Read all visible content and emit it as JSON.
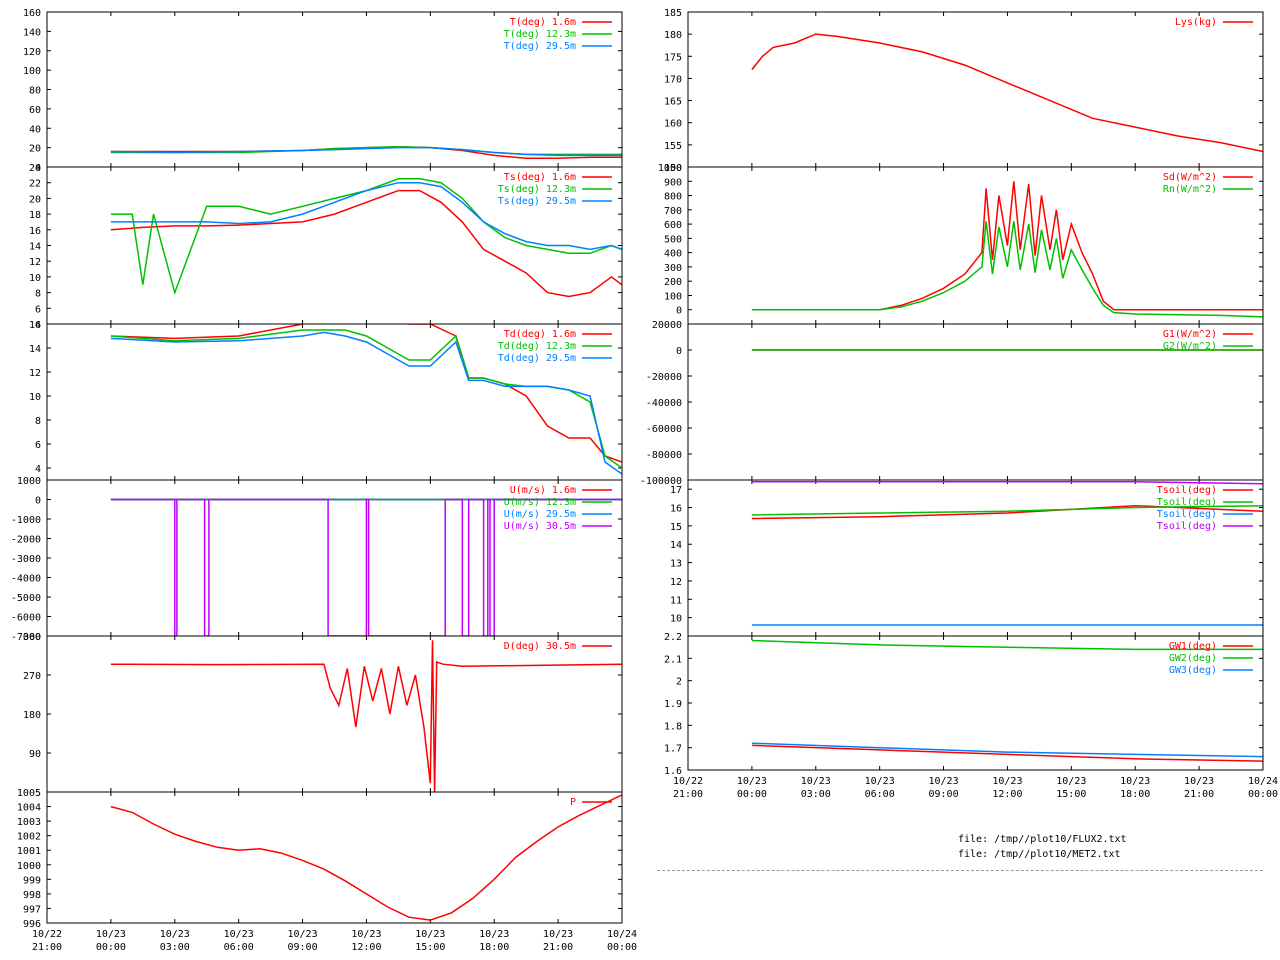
{
  "files": [
    "file: /tmp//plot10/FLUX2.txt",
    "file: /tmp//plot10/MET2.txt"
  ],
  "colors": {
    "red": "#ff0000",
    "green": "#00c000",
    "blue": "#0080ff",
    "purple": "#c000ff"
  },
  "time_axis": {
    "range_hours": [
      -3,
      24
    ],
    "ticks": [
      {
        "date": "10/22",
        "time": "21:00",
        "h": -3
      },
      {
        "date": "10/23",
        "time": "00:00",
        "h": 0
      },
      {
        "date": "10/23",
        "time": "03:00",
        "h": 3
      },
      {
        "date": "10/23",
        "time": "06:00",
        "h": 6
      },
      {
        "date": "10/23",
        "time": "09:00",
        "h": 9
      },
      {
        "date": "10/23",
        "time": "12:00",
        "h": 12
      },
      {
        "date": "10/23",
        "time": "15:00",
        "h": 15
      },
      {
        "date": "10/23",
        "time": "18:00",
        "h": 18
      },
      {
        "date": "10/23",
        "time": "21:00",
        "h": 21
      },
      {
        "date": "10/24",
        "time": "00:00",
        "h": 24
      }
    ]
  },
  "chart_data": [
    {
      "id": "T",
      "type": "line",
      "ylim": [
        0,
        160
      ],
      "yticks": [
        0,
        20,
        40,
        60,
        80,
        100,
        120,
        140,
        160
      ],
      "series": [
        {
          "name": "T(deg)  1.6m",
          "color": "#ff0000",
          "x": [
            0,
            3,
            6,
            9,
            10.5,
            12,
            13.5,
            15,
            16.5,
            18,
            19.5,
            21,
            22.5,
            24
          ],
          "y": [
            16,
            16,
            16,
            17,
            19,
            20,
            21,
            20,
            17,
            12,
            9,
            9,
            10,
            10
          ]
        },
        {
          "name": "T(deg) 12.3m",
          "color": "#00c000",
          "x": [
            0,
            3,
            6,
            9,
            10.5,
            12,
            13.5,
            15,
            16.5,
            18,
            19.5,
            21,
            22.5,
            24
          ],
          "y": [
            15,
            15,
            15,
            17,
            19,
            20,
            21,
            20,
            18,
            15,
            13,
            13,
            13,
            13
          ]
        },
        {
          "name": "T(deg) 29.5m",
          "color": "#0080ff",
          "x": [
            0,
            3,
            6,
            9,
            10.5,
            12,
            13.5,
            15,
            16.5,
            18,
            19.5,
            21,
            22.5,
            24
          ],
          "y": [
            16,
            15,
            16,
            17,
            18,
            19,
            20,
            20,
            18,
            15,
            13,
            12,
            12,
            12
          ]
        }
      ]
    },
    {
      "id": "Ts",
      "type": "line",
      "ylim": [
        4,
        24
      ],
      "yticks": [
        4,
        6,
        8,
        10,
        12,
        14,
        16,
        18,
        20,
        22,
        24
      ],
      "series": [
        {
          "name": "Ts(deg)  1.6m",
          "color": "#ff0000",
          "x": [
            0,
            1.5,
            3,
            4.5,
            6,
            7.5,
            9,
            10.5,
            12,
            13.5,
            14.5,
            15.5,
            16.5,
            17.5,
            18.5,
            19.5,
            20.5,
            21.5,
            22.5,
            23.5,
            24
          ],
          "y": [
            16,
            16.3,
            16.5,
            16.5,
            16.6,
            16.8,
            17,
            18,
            19.5,
            21,
            21,
            19.5,
            17,
            13.5,
            12,
            10.5,
            8,
            7.5,
            8,
            10,
            9
          ]
        },
        {
          "name": "Ts(deg) 12.3m",
          "color": "#00c000",
          "x": [
            0,
            1,
            1.5,
            2,
            3,
            4.5,
            6,
            7.5,
            9,
            10.5,
            12,
            13.5,
            14.5,
            15.5,
            16.5,
            17.5,
            18.5,
            19.5,
            20.5,
            21.5,
            22.5,
            23.5,
            24
          ],
          "y": [
            18,
            18,
            9,
            18,
            8,
            19,
            19,
            18,
            19,
            20,
            21,
            22.5,
            22.5,
            22,
            20,
            17,
            15,
            14,
            13.5,
            13,
            13,
            14,
            13.5
          ]
        },
        {
          "name": "Ts(deg) 29.5m",
          "color": "#0080ff",
          "x": [
            0,
            1.5,
            3,
            4.5,
            6,
            7.5,
            9,
            10.5,
            12,
            13.5,
            14.5,
            15.5,
            16.5,
            17.5,
            18.5,
            19.5,
            20.5,
            21.5,
            22.5,
            23.5,
            24
          ],
          "y": [
            17,
            17,
            17,
            17,
            16.8,
            17,
            18,
            19.5,
            21,
            22,
            22,
            21.5,
            19.5,
            17,
            15.5,
            14.5,
            14,
            14,
            13.5,
            14,
            13.5
          ]
        }
      ]
    },
    {
      "id": "Td",
      "type": "line",
      "ylim": [
        3,
        16
      ],
      "yticks": [
        4,
        6,
        8,
        10,
        12,
        14,
        16
      ],
      "series": [
        {
          "name": "Td(deg)  1.6m",
          "color": "#ff0000",
          "x": [
            0,
            3,
            6,
            9,
            10,
            11,
            12,
            13,
            14,
            15,
            16.2,
            16.8,
            17.5,
            18.5,
            19.5,
            20.5,
            21.5,
            22.5,
            23.2,
            24
          ],
          "y": [
            15,
            14.8,
            15,
            16,
            16.5,
            17,
            16.5,
            16.5,
            16,
            16,
            15,
            11.5,
            11.5,
            11,
            10,
            7.5,
            6.5,
            6.5,
            5,
            4.5
          ]
        },
        {
          "name": "Td(deg) 12.3m",
          "color": "#00c000",
          "x": [
            0,
            3,
            6,
            9,
            10,
            11,
            12,
            13,
            14,
            15,
            16.2,
            16.8,
            17.5,
            18.5,
            19.5,
            20.5,
            21.5,
            22.5,
            23.2,
            24
          ],
          "y": [
            15,
            14.6,
            14.8,
            15.5,
            15.5,
            15.5,
            15,
            14,
            13,
            13,
            15,
            11.5,
            11.5,
            11,
            10.8,
            10.8,
            10.5,
            9.5,
            5,
            4
          ]
        },
        {
          "name": "Td(deg) 29.5m",
          "color": "#0080ff",
          "x": [
            0,
            3,
            6,
            9,
            10,
            11,
            12,
            13,
            14,
            15,
            16.2,
            16.8,
            17.5,
            18.5,
            19.5,
            20.5,
            21.5,
            22.5,
            23.2,
            24
          ],
          "y": [
            14.8,
            14.5,
            14.6,
            15,
            15.3,
            15,
            14.5,
            13.5,
            12.5,
            12.5,
            14.5,
            11.3,
            11.3,
            10.8,
            10.8,
            10.8,
            10.5,
            10,
            4.5,
            3.5
          ]
        }
      ]
    },
    {
      "id": "U",
      "type": "line",
      "ylim": [
        -7000,
        1000
      ],
      "yticks": [
        -7000,
        -6000,
        -5000,
        -4000,
        -3000,
        -2000,
        -1000,
        0,
        1000
      ],
      "series": [
        {
          "name": "U(m/s)  1.6m",
          "color": "#ff0000",
          "x": [
            0,
            24
          ],
          "y": [
            0,
            0
          ]
        },
        {
          "name": "U(m/s) 12.3m",
          "color": "#00c000",
          "x": [
            0,
            24
          ],
          "y": [
            0,
            0
          ]
        },
        {
          "name": "U(m/s) 29.5m",
          "color": "#0080ff",
          "x": [
            0,
            24
          ],
          "y": [
            0,
            0
          ]
        },
        {
          "name": "U(m/s) 30.5m",
          "color": "#c000ff",
          "x": [
            0,
            3,
            3,
            3.1,
            3.1,
            4.4,
            4.4,
            4.6,
            4.6,
            10.2,
            10.2,
            12,
            12,
            12.1,
            12.1,
            15.7,
            15.7,
            16.5,
            16.5,
            16.8,
            16.8,
            17.5,
            17.5,
            17.7,
            17.7,
            17.8,
            17.8,
            18,
            18,
            24
          ],
          "y": [
            0,
            0,
            -7000,
            -7000,
            0,
            0,
            -7000,
            -7000,
            0,
            0,
            -7000,
            -7000,
            0,
            0,
            -7000,
            -7000,
            0,
            0,
            -7000,
            -7000,
            0,
            0,
            -7000,
            -7000,
            0,
            0,
            -7000,
            -7000,
            0,
            0
          ]
        }
      ]
    },
    {
      "id": "D",
      "type": "line",
      "ylim": [
        0,
        360
      ],
      "yticks": [
        90,
        180,
        270,
        360
      ],
      "series": [
        {
          "name": "D(deg)  30.5m",
          "color": "#ff0000",
          "x": [
            0,
            5,
            10,
            10.3,
            10.7,
            11.1,
            11.5,
            11.9,
            12.3,
            12.7,
            13.1,
            13.5,
            13.9,
            14.3,
            14.7,
            15,
            15.1,
            15.2,
            15.3,
            15.6,
            16.5,
            24
          ],
          "y": [
            295,
            294,
            295,
            240,
            200,
            285,
            150,
            290,
            210,
            285,
            180,
            290,
            200,
            270,
            150,
            20,
            350,
            0,
            300,
            295,
            290,
            295
          ]
        }
      ]
    },
    {
      "id": "P",
      "type": "line",
      "ylim": [
        996,
        1005
      ],
      "yticks": [
        996,
        997,
        998,
        999,
        1000,
        1001,
        1002,
        1003,
        1004,
        1005
      ],
      "series": [
        {
          "name": "P",
          "color": "#ff0000",
          "x": [
            0,
            1,
            2,
            3,
            4,
            5,
            6,
            7,
            8,
            9,
            10,
            11,
            12,
            13,
            14,
            15,
            16,
            17,
            18,
            19,
            20,
            21,
            22,
            23,
            24
          ],
          "y": [
            1004,
            1003.6,
            1002.8,
            1002.1,
            1001.6,
            1001.2,
            1001,
            1001.1,
            1000.8,
            1000.3,
            999.7,
            998.9,
            998,
            997.1,
            996.4,
            996.2,
            996.7,
            997.7,
            999,
            1000.5,
            1001.6,
            1002.6,
            1003.4,
            1004.1,
            1004.8
          ]
        }
      ]
    },
    {
      "id": "Lys",
      "type": "line",
      "ylim": [
        150,
        185
      ],
      "yticks": [
        150,
        155,
        160,
        165,
        170,
        175,
        180,
        185
      ],
      "series": [
        {
          "name": "Lys(kg)",
          "color": "#ff0000",
          "x": [
            0,
            0.5,
            1,
            2,
            3,
            4,
            6,
            8,
            10,
            12,
            14,
            16,
            18,
            20,
            22,
            24
          ],
          "y": [
            172,
            175,
            177,
            178,
            180,
            179.5,
            178,
            176,
            173,
            169,
            165,
            161,
            159,
            157,
            155.5,
            153.5
          ]
        }
      ]
    },
    {
      "id": "Sd",
      "type": "line",
      "ylim": [
        -100,
        1000
      ],
      "yticks": [
        0,
        100,
        200,
        300,
        400,
        500,
        600,
        700,
        800,
        900,
        1000
      ],
      "series": [
        {
          "name": "Sd(W/m^2)",
          "color": "#ff0000",
          "x": [
            0,
            6,
            7,
            8,
            9,
            10,
            10.8,
            11,
            11.3,
            11.6,
            12,
            12.3,
            12.6,
            13,
            13.3,
            13.6,
            14,
            14.3,
            14.6,
            15,
            15.5,
            16,
            16.5,
            17,
            24
          ],
          "y": [
            0,
            0,
            30,
            80,
            150,
            250,
            400,
            850,
            350,
            800,
            450,
            900,
            420,
            880,
            380,
            800,
            420,
            700,
            350,
            600,
            400,
            250,
            60,
            0,
            0
          ]
        },
        {
          "name": "Rn(W/m^2)",
          "color": "#00c000",
          "x": [
            0,
            6,
            7,
            8,
            9,
            10,
            10.8,
            11,
            11.3,
            11.6,
            12,
            12.3,
            12.6,
            13,
            13.3,
            13.6,
            14,
            14.3,
            14.6,
            15,
            15.5,
            16,
            16.5,
            17,
            18,
            20,
            22,
            24
          ],
          "y": [
            0,
            0,
            20,
            60,
            120,
            200,
            300,
            620,
            250,
            580,
            300,
            620,
            280,
            600,
            260,
            560,
            280,
            500,
            220,
            420,
            280,
            150,
            30,
            -20,
            -30,
            -35,
            -40,
            -50
          ]
        }
      ]
    },
    {
      "id": "G",
      "type": "line",
      "ylim": [
        -100000,
        20000
      ],
      "yticks": [
        -100000,
        -80000,
        -60000,
        -40000,
        -20000,
        0,
        20000
      ],
      "series": [
        {
          "name": "G1(W/m^2)",
          "color": "#ff0000",
          "x": [
            0,
            24
          ],
          "y": [
            0,
            0
          ]
        },
        {
          "name": "G2(W/m^2)",
          "color": "#00c000",
          "x": [
            0,
            24
          ],
          "y": [
            0,
            0
          ]
        }
      ]
    },
    {
      "id": "Tsoil",
      "type": "line",
      "ylim": [
        9,
        17.5
      ],
      "yticks": [
        10,
        11,
        12,
        13,
        14,
        15,
        16,
        17
      ],
      "series": [
        {
          "name": "Tsoil(deg)",
          "color": "#ff0000",
          "x": [
            0,
            6,
            12,
            18,
            24
          ],
          "y": [
            15.4,
            15.5,
            15.7,
            16.1,
            15.8
          ]
        },
        {
          "name": "Tsoil(deg)",
          "color": "#00c000",
          "x": [
            0,
            6,
            12,
            18,
            24
          ],
          "y": [
            15.6,
            15.7,
            15.8,
            16.0,
            16.1
          ]
        },
        {
          "name": "Tsoil(deg)",
          "color": "#0080ff",
          "x": [
            0,
            6,
            12,
            18,
            24
          ],
          "y": [
            9.6,
            9.6,
            9.6,
            9.6,
            9.6
          ]
        },
        {
          "name": "Tsoil(deg)",
          "color": "#c000ff",
          "x": [
            0,
            6,
            12,
            18,
            24
          ],
          "y": [
            17.4,
            17.4,
            17.4,
            17.4,
            17.3
          ]
        }
      ]
    },
    {
      "id": "GW",
      "type": "line",
      "ylim": [
        1.6,
        2.2
      ],
      "yticks": [
        1.6,
        1.7,
        1.8,
        1.9,
        2,
        2.1,
        2.2
      ],
      "series": [
        {
          "name": "GW1(deg)",
          "color": "#ff0000",
          "x": [
            0,
            6,
            12,
            18,
            24
          ],
          "y": [
            1.71,
            1.69,
            1.67,
            1.65,
            1.64
          ]
        },
        {
          "name": "GW2(deg)",
          "color": "#00c000",
          "x": [
            0,
            6,
            12,
            18,
            24
          ],
          "y": [
            2.18,
            2.16,
            2.15,
            2.14,
            2.14
          ]
        },
        {
          "name": "GW3(deg)",
          "color": "#0080ff",
          "x": [
            0,
            6,
            12,
            18,
            24
          ],
          "y": [
            1.72,
            1.7,
            1.68,
            1.67,
            1.66
          ]
        }
      ]
    }
  ]
}
